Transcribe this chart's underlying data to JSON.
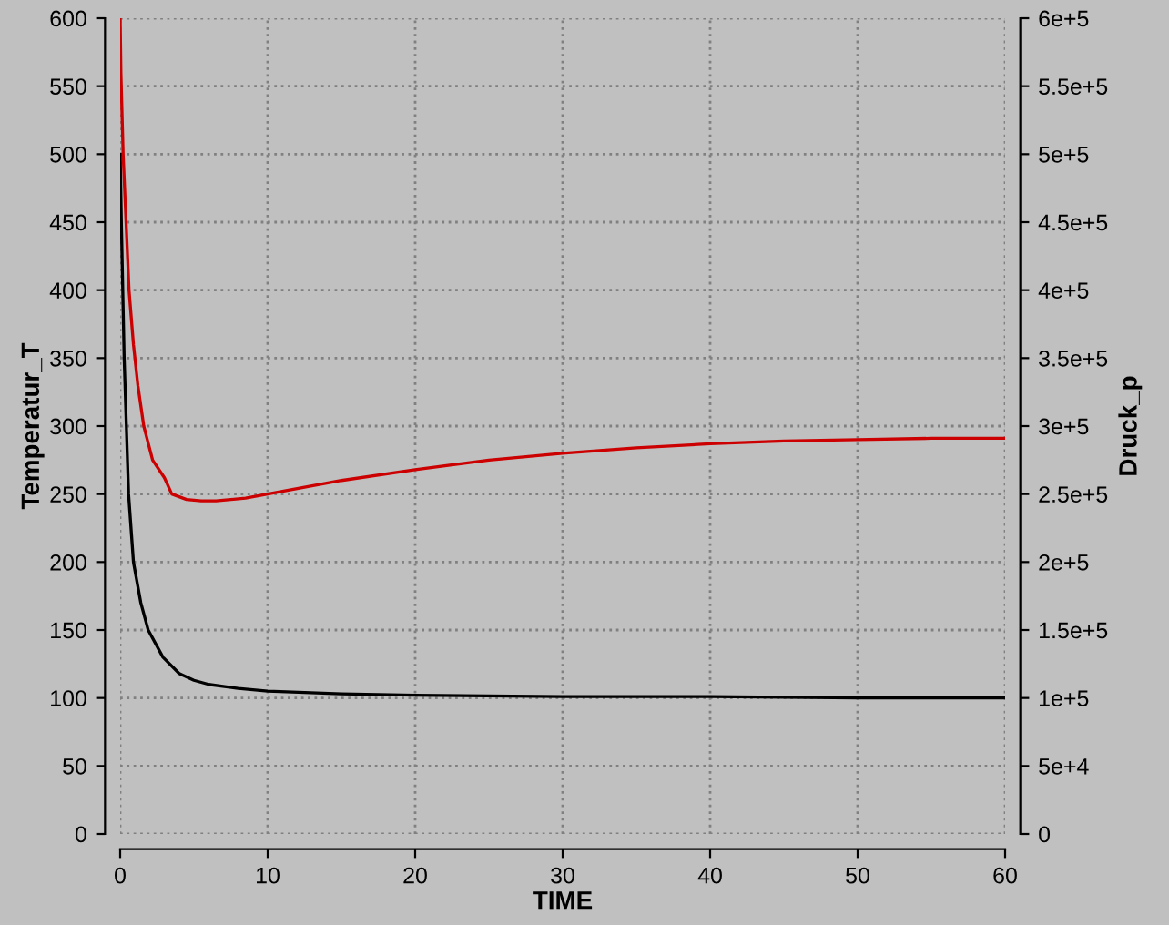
{
  "chart_data": {
    "type": "line",
    "xlabel": "TIME",
    "ylabel": "Temperatur_T",
    "y2label": "Druck_p",
    "grid": true,
    "marker": "none",
    "line_style": "solid",
    "xlim": [
      0,
      60
    ],
    "xticks": [
      0,
      10,
      20,
      30,
      40,
      50,
      60
    ],
    "ylim": [
      0,
      600
    ],
    "yticks": [
      0,
      50,
      100,
      150,
      200,
      250,
      300,
      350,
      400,
      450,
      500,
      550,
      600
    ],
    "y2lim": [
      0,
      600000
    ],
    "y2ticks": [
      {
        "value": 0,
        "label": "0"
      },
      {
        "value": 50000,
        "label": "5e+4"
      },
      {
        "value": 100000,
        "label": "1e+5"
      },
      {
        "value": 150000,
        "label": "1.5e+5"
      },
      {
        "value": 200000,
        "label": "2e+5"
      },
      {
        "value": 250000,
        "label": "2.5e+5"
      },
      {
        "value": 300000,
        "label": "3e+5"
      },
      {
        "value": 350000,
        "label": "3.5e+5"
      },
      {
        "value": 400000,
        "label": "4e+5"
      },
      {
        "value": 450000,
        "label": "4.5e+5"
      },
      {
        "value": 500000,
        "label": "5e+5"
      },
      {
        "value": 550000,
        "label": "5.5e+5"
      },
      {
        "value": 600000,
        "label": "6e+5"
      }
    ],
    "series": [
      {
        "color": "#cc0000",
        "x": [
          0,
          0.05,
          0.2,
          0.4,
          0.6,
          0.9,
          1.2,
          1.6,
          2.2,
          3,
          3.5,
          4.5,
          5.5,
          6.5,
          7.5,
          8.5,
          10,
          15,
          20,
          25,
          30,
          35,
          40,
          45,
          50,
          55,
          60
        ],
        "values": [
          600,
          560,
          500,
          450,
          400,
          360,
          330,
          300,
          275,
          262,
          250,
          246,
          245,
          245,
          246,
          247,
          250,
          260,
          268,
          275,
          280,
          284,
          287,
          289,
          290,
          291,
          291
        ]
      },
      {
        "color": "#000000",
        "axis": "y2",
        "x": [
          0,
          0.08,
          0.27,
          0.57,
          0.9,
          1.4,
          1.9,
          2.9,
          4,
          5,
          6,
          8,
          10,
          15,
          20,
          30,
          40,
          50,
          60
        ],
        "values": [
          500000,
          450000,
          350000,
          250000,
          200000,
          170000,
          150000,
          130000,
          118000,
          113000,
          110000,
          107000,
          105000,
          103000,
          102000,
          101000,
          101000,
          100000,
          100000
        ]
      }
    ]
  }
}
